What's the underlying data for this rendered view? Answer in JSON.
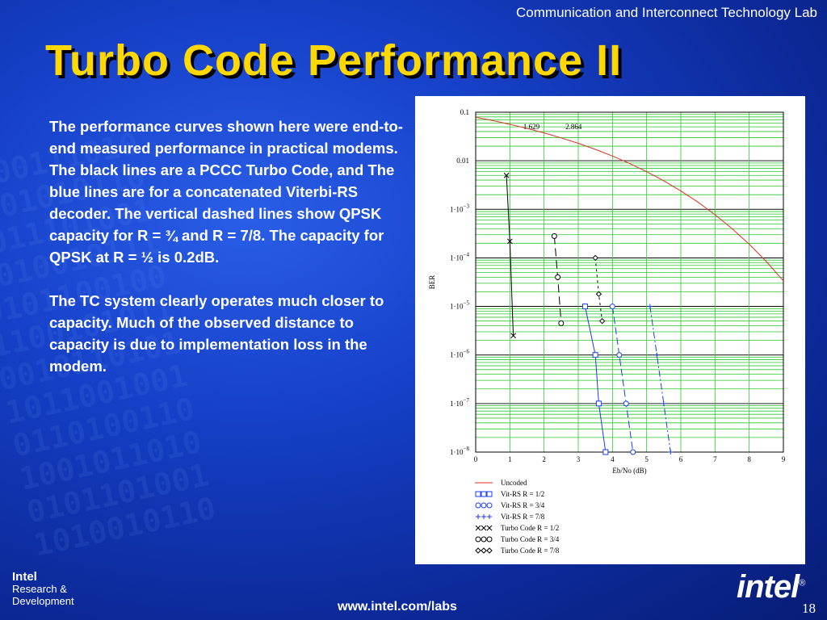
{
  "header": {
    "lab_name": "Communication and Interconnect Technology Lab",
    "title": "Turbo Code Performance II"
  },
  "body": {
    "paragraph1": "The performance curves shown here were end-to-end measured performance in practical modems.  The black lines are a PCCC Turbo Code, and The blue lines are for a concatenated Viterbi-RS decoder.   The vertical dashed lines show QPSK capacity for R = ¾ and R = 7/8.  The capacity for QPSK at R = ½ is 0.2dB.",
    "paragraph2": "The TC system clearly operates much closer to capacity.  Much of the observed distance to capacity is due to implementation loss in the modem."
  },
  "footer": {
    "division_line1": "Intel",
    "division_line2": "Research &",
    "division_line3": "Development",
    "url": "www.intel.com/labs",
    "page_number": "18",
    "logo_text": "intel"
  },
  "chart_data": {
    "type": "line",
    "xlabel": "Eb/No (dB)",
    "ylabel": "BER",
    "xlim": [
      0,
      9
    ],
    "ylim": [
      1e-08,
      0.1
    ],
    "yscale": "log",
    "x_ticks": [
      "0",
      "1",
      "2",
      "3",
      "4",
      "5",
      "6",
      "7",
      "8",
      "9"
    ],
    "y_ticks": [
      {
        "base": "0.1",
        "exp": ""
      },
      {
        "base": "0.01",
        "exp": ""
      },
      {
        "base": "1·10",
        "exp": "−3"
      },
      {
        "base": "1·10",
        "exp": "−4"
      },
      {
        "base": "1·10",
        "exp": "−5"
      },
      {
        "base": "1·10",
        "exp": "−6"
      },
      {
        "base": "1·10",
        "exp": "−7"
      },
      {
        "base": "1·10",
        "exp": "−8"
      }
    ],
    "grid": true,
    "legend_position": "bottom",
    "capacity_labels": [
      {
        "x": 1.629,
        "label": "1.629"
      },
      {
        "x": 2.864,
        "label": "2.864"
      }
    ],
    "series": [
      {
        "name": "Uncoded",
        "color": "#e03020",
        "dash": "",
        "marker": "none",
        "x": [
          0,
          0.5,
          1,
          1.5,
          2,
          2.5,
          3,
          3.5,
          4,
          4.5,
          5,
          5.5,
          6,
          6.5,
          7,
          7.5,
          8,
          8.5,
          9
        ],
        "y": [
          0.0786,
          0.0671,
          0.0563,
          0.0464,
          0.0375,
          0.0296,
          0.0229,
          0.0172,
          0.0125,
          0.00882,
          0.00595,
          0.00387,
          0.00239,
          0.00141,
          0.000773,
          0.0004,
          0.000191,
          8.43e-05,
          3.36e-05
        ]
      },
      {
        "name": "Vit-RS R = 1/2",
        "color": "#1a3ee8",
        "dash": "",
        "marker": "square",
        "x": [
          3.2,
          3.5,
          3.6,
          3.8
        ],
        "y": [
          1e-05,
          1e-06,
          1e-07,
          1e-08
        ]
      },
      {
        "name": "Vit-RS R = 3/4",
        "color": "#1a3ee8",
        "dash": "9,4",
        "marker": "circle",
        "x": [
          4.0,
          4.2,
          4.4,
          4.6
        ],
        "y": [
          1e-05,
          1e-06,
          1e-07,
          1e-08
        ]
      },
      {
        "name": "Vit-RS R = 7/8",
        "color": "#1a3ee8",
        "dash": "8,3,2,3",
        "marker": "plus",
        "x": [
          5.1,
          5.3,
          5.5,
          5.7
        ],
        "y": [
          1e-05,
          1e-06,
          1e-07,
          1e-08
        ]
      },
      {
        "name": "Turbo Code R = 1/2",
        "color": "#000000",
        "dash": "",
        "marker": "x",
        "x": [
          0.9,
          1.0,
          1.1
        ],
        "y": [
          0.005,
          0.00022,
          2.5e-06
        ]
      },
      {
        "name": "Turbo Code R = 3/4",
        "color": "#000000",
        "dash": "10,5",
        "marker": "circle",
        "x": [
          2.3,
          2.4,
          2.5
        ],
        "y": [
          0.00028,
          4e-05,
          4.5e-06
        ]
      },
      {
        "name": "Turbo Code R = 7/8",
        "color": "#000000",
        "dash": "3,4",
        "marker": "diamond",
        "x": [
          3.5,
          3.6,
          3.7
        ],
        "y": [
          0.0001,
          1.8e-05,
          5e-06
        ]
      }
    ]
  }
}
